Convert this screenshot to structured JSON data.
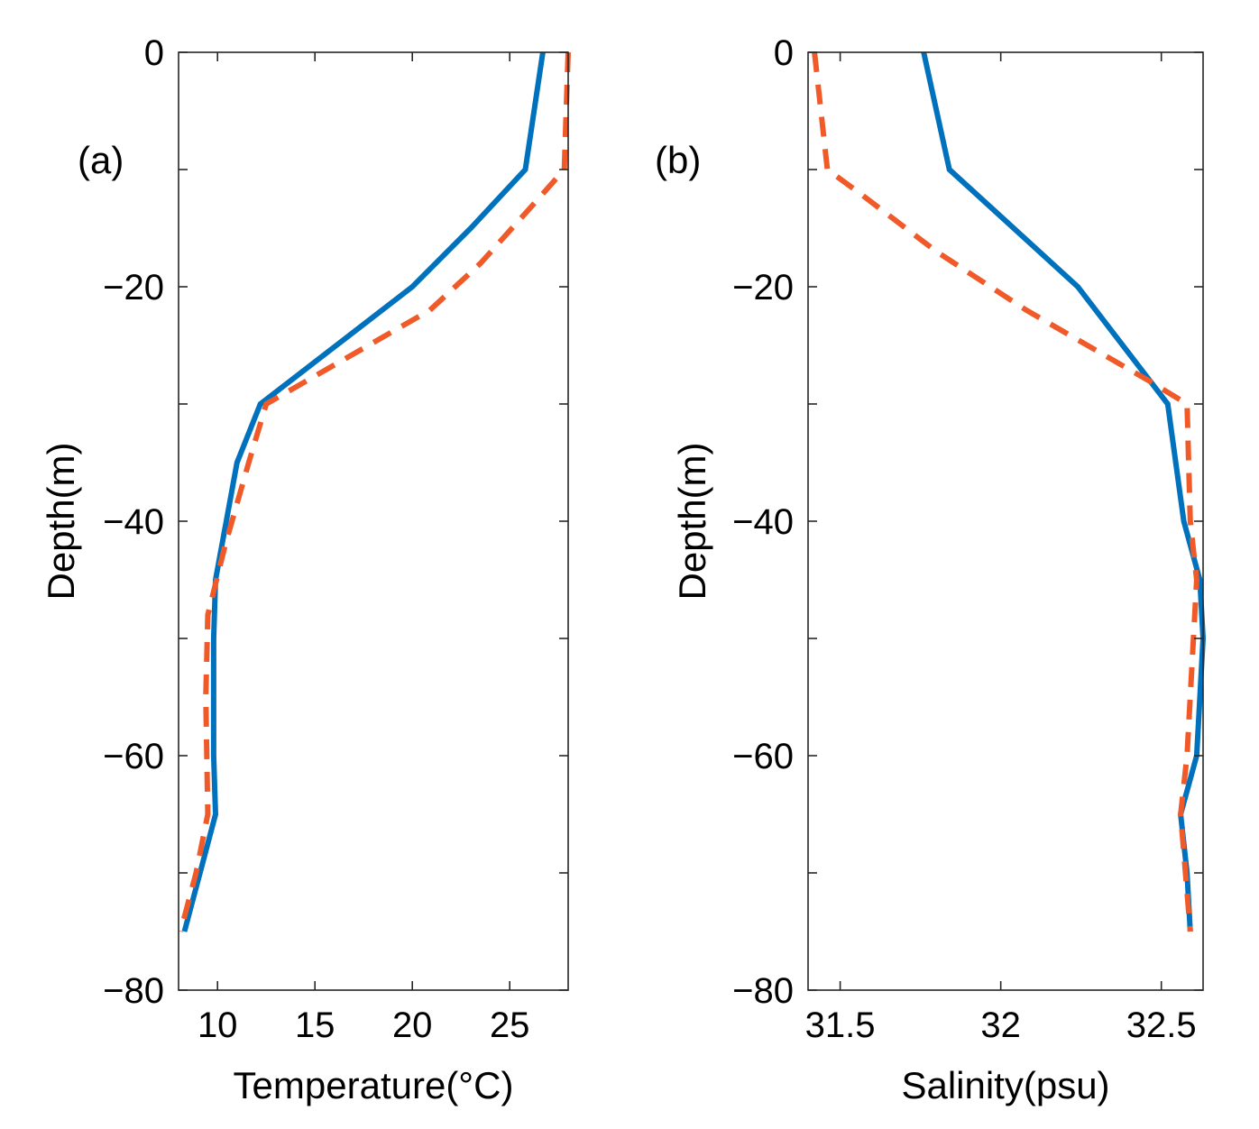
{
  "colors": {
    "observed": "#0072BD",
    "simulated": "#F05A28",
    "axis": "#262626"
  },
  "chart_data": [
    {
      "type": "line",
      "panel_label": "(a)",
      "xlabel": "Temperature(°C)",
      "ylabel": "Depth(m)",
      "xlim": [
        8,
        28
      ],
      "ylim": [
        -80,
        0
      ],
      "xticks": [
        10,
        15,
        20,
        25
      ],
      "xtick_labels": [
        "10",
        "15",
        "20",
        "25"
      ],
      "yticks": [
        0,
        -20,
        -40,
        -60,
        -80
      ],
      "ytick_labels": [
        "0",
        "−20",
        "−40",
        "−60",
        "−80"
      ],
      "minor_yticks": [
        -10,
        -30,
        -50,
        -70
      ],
      "grid": false,
      "legend": "none",
      "series": [
        {
          "name": "solid",
          "style": "solid",
          "x": [
            26.7,
            25.8,
            23.0,
            20.0,
            12.2,
            11.0,
            9.9,
            9.8,
            9.8,
            9.9,
            9.1,
            8.3
          ],
          "y": [
            0,
            -10,
            -15,
            -20,
            -30,
            -35,
            -45,
            -50,
            -60,
            -65,
            -70,
            -75
          ]
        },
        {
          "name": "dashed",
          "style": "dashed",
          "x": [
            28.0,
            27.9,
            27.8,
            26.2,
            23.5,
            20.9,
            12.5,
            11.6,
            10.4,
            9.5,
            9.4,
            9.5,
            8.9,
            8.1
          ],
          "y": [
            0,
            -5,
            -10,
            -13,
            -18,
            -22,
            -30,
            -35,
            -42,
            -48,
            -55,
            -65,
            -70,
            -75
          ]
        }
      ]
    },
    {
      "type": "line",
      "panel_label": "(b)",
      "xlabel": "Salinity(psu)",
      "ylabel": "Depth(m)",
      "xlim": [
        31.4,
        32.63
      ],
      "ylim": [
        -80,
        0
      ],
      "xticks": [
        31.5,
        32,
        32.5
      ],
      "xtick_labels": [
        "31.5",
        "32",
        "32.5"
      ],
      "yticks": [
        0,
        -20,
        -40,
        -60,
        -80
      ],
      "ytick_labels": [
        "0",
        "−20",
        "−40",
        "−60",
        "−80"
      ],
      "minor_yticks": [
        -10,
        -30,
        -50,
        -70
      ],
      "grid": false,
      "legend": "none",
      "series": [
        {
          "name": "solid",
          "style": "solid",
          "x": [
            31.76,
            31.84,
            32.04,
            32.24,
            32.52,
            32.57,
            32.62,
            32.63,
            32.61,
            32.56,
            32.58,
            32.59
          ],
          "y": [
            0,
            -10,
            -15,
            -20,
            -30,
            -40,
            -45,
            -50,
            -60,
            -65,
            -70,
            -75
          ]
        },
        {
          "name": "dashed",
          "style": "dashed",
          "x": [
            31.42,
            31.46,
            31.56,
            31.8,
            32.08,
            32.46,
            32.58,
            32.59,
            32.61,
            32.6,
            32.58,
            32.56,
            32.59
          ],
          "y": [
            0,
            -10,
            -12,
            -17,
            -22,
            -28,
            -30,
            -40,
            -45,
            -50,
            -60,
            -65,
            -75
          ]
        }
      ]
    }
  ]
}
